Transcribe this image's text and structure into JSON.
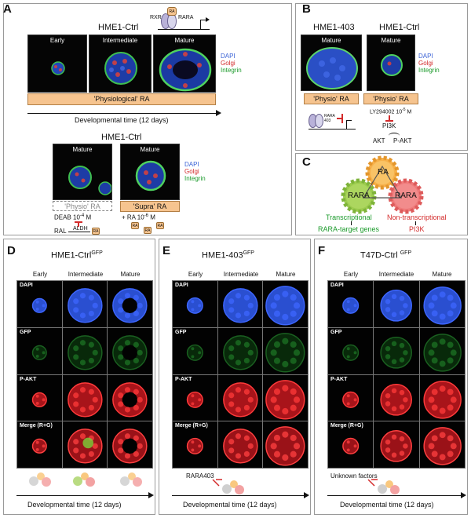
{
  "panels": {
    "A": {
      "letter": "A",
      "title_top": "HME1-Ctrl",
      "schematic": {
        "rxr": "RXR",
        "rara": "RARA",
        "ra": "RA"
      },
      "stages": [
        "Early",
        "Intermediate",
        "Mature"
      ],
      "legend": {
        "dapi": "DAPI",
        "golgi": "Golgi",
        "integrin": "Integrin"
      },
      "bar_label": "'Physiological' RA",
      "time_label": "Developmental time (12 days)",
      "title_bottom": "HME1-Ctrl",
      "mature_left": "Mature",
      "mature_right": "Mature",
      "physio_label": "'Physio' RA",
      "supra_label": "'Supra' RA",
      "deab": "DEAB 10",
      "deab_exp": "-4",
      "deab_unit": "M",
      "ra_conc": "+ RA 10",
      "ra_exp": "-6",
      "ra_unit": "M",
      "ral": "RAL",
      "aldh": "ALDH",
      "ra": "RA"
    },
    "B": {
      "letter": "B",
      "left_title": "HME1-403",
      "right_title": "HME1-Ctrl",
      "mature": "Mature",
      "physio_label": "'Physio' RA",
      "legend": {
        "dapi": "DAPI",
        "golgi": "Golgi",
        "integrin": "Integrin"
      },
      "rara403": "RARA 403",
      "ly": "LY294002 10",
      "ly_exp": "-5",
      "ly_unit": "M",
      "pi3k": "PI3K",
      "akt": "AKT",
      "pakt": "P-AKT"
    },
    "C": {
      "letter": "C",
      "gear_ra": "RA",
      "gear_rara_left": "RARA",
      "gear_rara_right": "RARA",
      "transcriptional": "Transcriptional",
      "non_transcriptional": "Non-transcriptional",
      "target_genes": "RARA-target genes",
      "pi3k": "PI3K"
    },
    "D": {
      "letter": "D",
      "title": "HME1-Ctrl",
      "title_sup": "GFP",
      "cols": [
        "Early",
        "Intermediate",
        "Mature"
      ],
      "rows": [
        "DAPI",
        "GFP",
        "P-AKT",
        "Merge (R+G)"
      ],
      "time_label": "Developmental time (12 days)"
    },
    "E": {
      "letter": "E",
      "title": "HME1-403",
      "title_sup": "GFP",
      "cols": [
        "Early",
        "Intermediate",
        "Mature"
      ],
      "rows": [
        "DAPI",
        "GFP",
        "P-AKT",
        "Merge (R+G)"
      ],
      "annotation": "RARA403",
      "time_label": "Developmental time (12 days)"
    },
    "F": {
      "letter": "F",
      "title": "T47D-Ctrl",
      "title_sup": "GFP",
      "cols": [
        "Early",
        "Intermediate",
        "Mature"
      ],
      "rows": [
        "DAPI",
        "GFP",
        "P-AKT",
        "Merge (R+G)"
      ],
      "annotation": "Unknown factors",
      "time_label": "Developmental time (12 days)"
    }
  },
  "colors": {
    "dapi": "#3b63d6",
    "golgi": "#d32b2b",
    "integrin": "#1a9a2a",
    "orange_bar": "#f6c48f",
    "gear_ra": "#f7b14a",
    "gear_rara_green": "#9ccc4e",
    "gear_rara_red": "#ef7b7b"
  }
}
